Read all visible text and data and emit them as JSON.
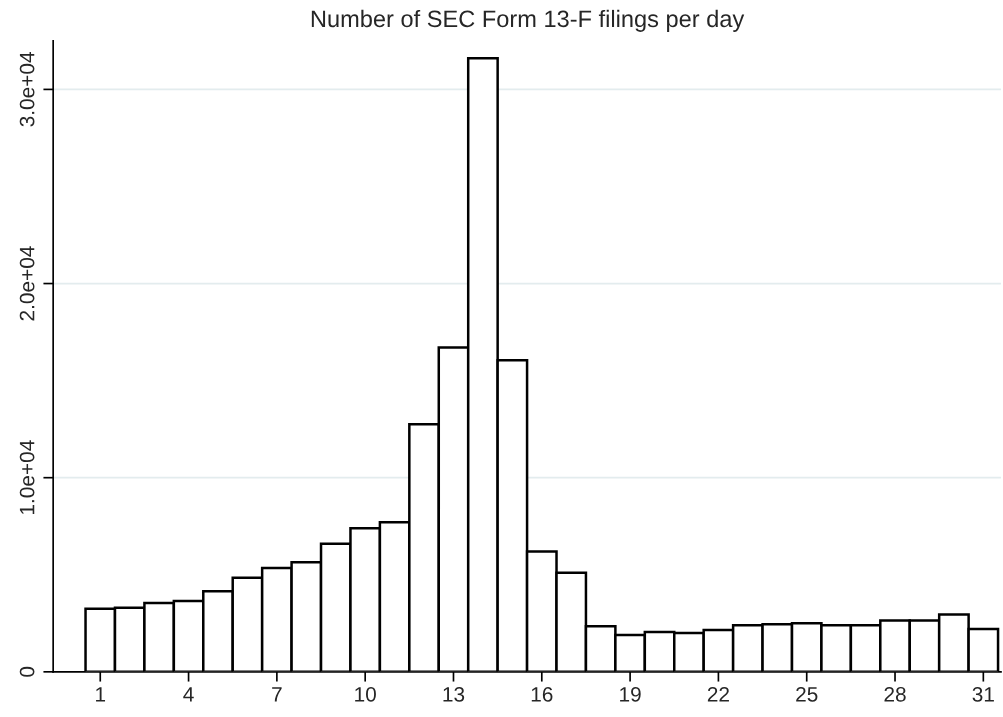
{
  "chart_data": {
    "type": "histogram",
    "title": "Number of SEC Form 13-F filings per day",
    "bins": [
      0.5,
      1.5,
      2.5,
      3.5,
      4.5,
      5.5,
      6.5,
      7.5,
      8.5,
      9.5,
      10.5,
      11.5,
      12.5,
      13.5,
      14.5,
      15.5,
      16.5,
      17.5,
      18.5,
      19.5,
      20.5,
      21.5,
      22.5,
      23.5,
      24.5,
      25.5,
      26.5,
      27.5,
      28.5,
      29.5,
      30.5,
      31.5
    ],
    "values": [
      3250,
      3300,
      3550,
      3650,
      4150,
      4850,
      5350,
      5650,
      6600,
      7400,
      7700,
      12750,
      16700,
      31600,
      16050,
      6200,
      5100,
      2350,
      1900,
      2050,
      2000,
      2150,
      2400,
      2450,
      2500,
      2400,
      2400,
      2650,
      2650,
      2950,
      2200
    ],
    "color": "#ffffff",
    "xlim": [
      -0.6,
      31.6
    ],
    "xticks": [
      1,
      4,
      7,
      10,
      13,
      16,
      19,
      22,
      25,
      28,
      31
    ],
    "ylim": [
      0,
      32500
    ],
    "yticks": [
      0,
      {
        "value": 10000,
        "label": "1.0e+04"
      },
      {
        "value": 20000,
        "label": "2.0e+04"
      },
      {
        "value": 30000,
        "label": "3.0e+04"
      }
    ],
    "grid": "y"
  }
}
